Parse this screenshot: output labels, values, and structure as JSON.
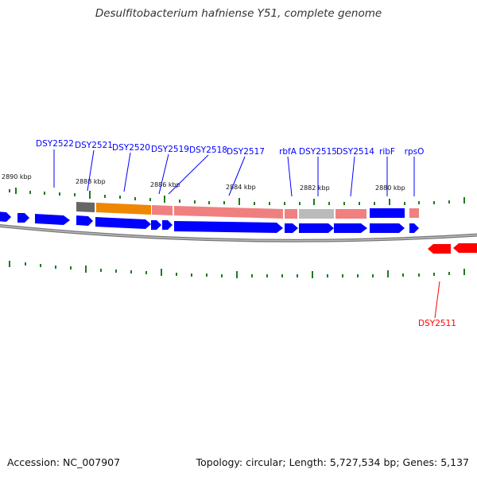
{
  "title": "Desulfitobacterium hafniense Y51, complete genome",
  "footer": {
    "accession": "Accession: NC_007907",
    "genome_info": "Topology: circular; Length: 5,727,534 bp; Genes: 5,137"
  },
  "scale_labels": [
    "2890 kbp",
    "2888 kbp",
    "2886 kbp",
    "2884 kbp",
    "2882 kbp",
    "2880 kbp"
  ],
  "genes": [
    {
      "label": "DSY2522",
      "strand": "forward",
      "color": "#0000ff"
    },
    {
      "label": "DSY2521",
      "strand": "forward",
      "color": "#0000ff"
    },
    {
      "label": "DSY2520",
      "strand": "forward",
      "color": "#0000ff"
    },
    {
      "label": "DSY2519",
      "strand": "forward",
      "color": "#0000ff"
    },
    {
      "label": "DSY2518",
      "strand": "forward",
      "color": "#0000ff"
    },
    {
      "label": "DSY2517",
      "strand": "forward",
      "color": "#0000ff"
    },
    {
      "label": "rbfA",
      "strand": "forward",
      "color": "#0000ff"
    },
    {
      "label": "DSY2515",
      "strand": "forward",
      "color": "#0000ff"
    },
    {
      "label": "DSY2514",
      "strand": "forward",
      "color": "#0000ff"
    },
    {
      "label": "ribF",
      "strand": "forward",
      "color": "#0000ff"
    },
    {
      "label": "rpsO",
      "strand": "forward",
      "color": "#0000ff"
    },
    {
      "label": "DSY2511",
      "strand": "reverse",
      "color": "#ff0000"
    }
  ],
  "colors": {
    "forward_gene": "#0000ff",
    "reverse_gene": "#ff0000",
    "tick": "#1f7a1f",
    "backbone": "#777777",
    "feature_orange": "#ee8800",
    "feature_salmon": "#f08080",
    "feature_gray": "#bbbbbb",
    "feature_dark": "#666666"
  }
}
